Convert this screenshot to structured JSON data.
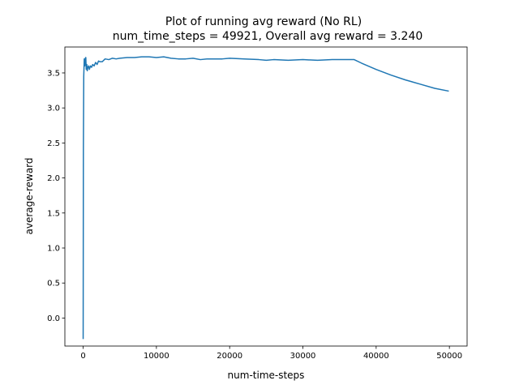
{
  "chart_data": {
    "type": "line",
    "title_line1": "Plot of running avg reward (No RL)",
    "title_line2": "num_time_steps = 49921, Overall avg reward = 3.240",
    "xlabel": "num-time-steps",
    "ylabel": "average-reward",
    "xlim": [
      -2496,
      52417
    ],
    "ylim": [
      -0.4,
      3.87
    ],
    "xticks": [
      0,
      10000,
      20000,
      30000,
      40000,
      50000
    ],
    "xtick_labels": [
      "0",
      "10000",
      "20000",
      "30000",
      "40000",
      "50000"
    ],
    "yticks": [
      0.0,
      0.5,
      1.0,
      1.5,
      2.0,
      2.5,
      3.0,
      3.5
    ],
    "ytick_labels": [
      "0.0",
      "0.5",
      "1.0",
      "1.5",
      "2.0",
      "2.5",
      "3.0",
      "3.5"
    ],
    "grid": false,
    "series": [
      {
        "name": "running avg reward",
        "color": "#1f77b4",
        "x": [
          0,
          30,
          80,
          150,
          220,
          300,
          360,
          420,
          500,
          560,
          650,
          750,
          850,
          1000,
          1150,
          1300,
          1500,
          1700,
          1900,
          2100,
          2300,
          2600,
          3000,
          3500,
          4000,
          4500,
          5000,
          6000,
          7000,
          8000,
          9000,
          10000,
          11000,
          12000,
          13000,
          14000,
          15000,
          16000,
          17000,
          18000,
          19000,
          20000,
          22000,
          24000,
          25000,
          26000,
          28000,
          30000,
          32000,
          34000,
          36000,
          37000,
          38000,
          40000,
          42000,
          44000,
          46000,
          48000,
          49921
        ],
        "y": [
          -0.3,
          2.4,
          3.45,
          3.7,
          3.6,
          3.71,
          3.72,
          3.55,
          3.62,
          3.53,
          3.58,
          3.6,
          3.55,
          3.6,
          3.58,
          3.62,
          3.6,
          3.65,
          3.62,
          3.67,
          3.66,
          3.66,
          3.7,
          3.69,
          3.71,
          3.7,
          3.71,
          3.72,
          3.72,
          3.73,
          3.73,
          3.72,
          3.73,
          3.71,
          3.7,
          3.7,
          3.71,
          3.69,
          3.7,
          3.7,
          3.7,
          3.71,
          3.7,
          3.69,
          3.68,
          3.69,
          3.68,
          3.69,
          3.68,
          3.69,
          3.69,
          3.69,
          3.64,
          3.55,
          3.47,
          3.4,
          3.34,
          3.28,
          3.24
        ]
      }
    ]
  }
}
